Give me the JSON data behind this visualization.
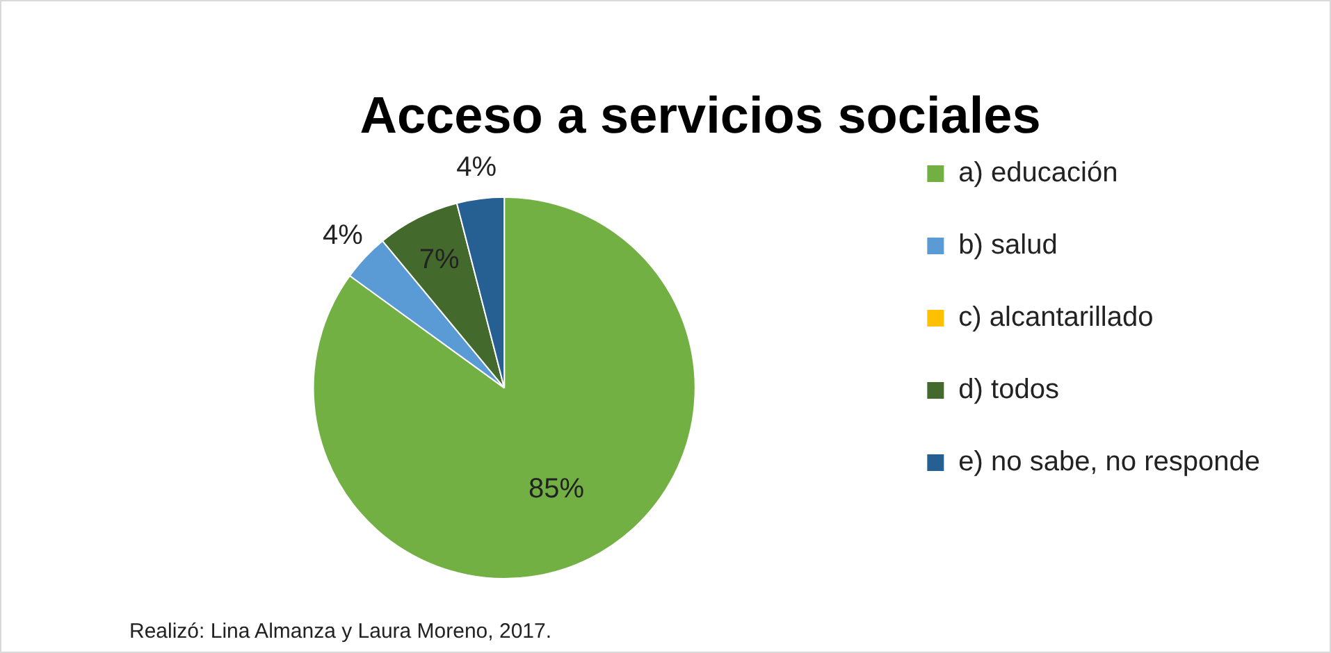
{
  "chart_data": {
    "type": "pie",
    "title": "Acceso a servicios sociales",
    "categories": [
      "a) educación",
      "b) salud",
      "c) alcantarillado",
      "d) todos",
      "e) no sabe, no responde"
    ],
    "values": [
      85,
      4,
      0,
      7,
      4
    ],
    "colors": [
      "#72b043",
      "#5b9bd5",
      "#ffc000",
      "#44692c",
      "#265f92"
    ],
    "value_labels": [
      "85%",
      "4%",
      null,
      "7%",
      "4%"
    ],
    "legend": "right",
    "annotations": [
      "Realizó: Lina Almanza y Laura Moreno, 2017."
    ]
  }
}
